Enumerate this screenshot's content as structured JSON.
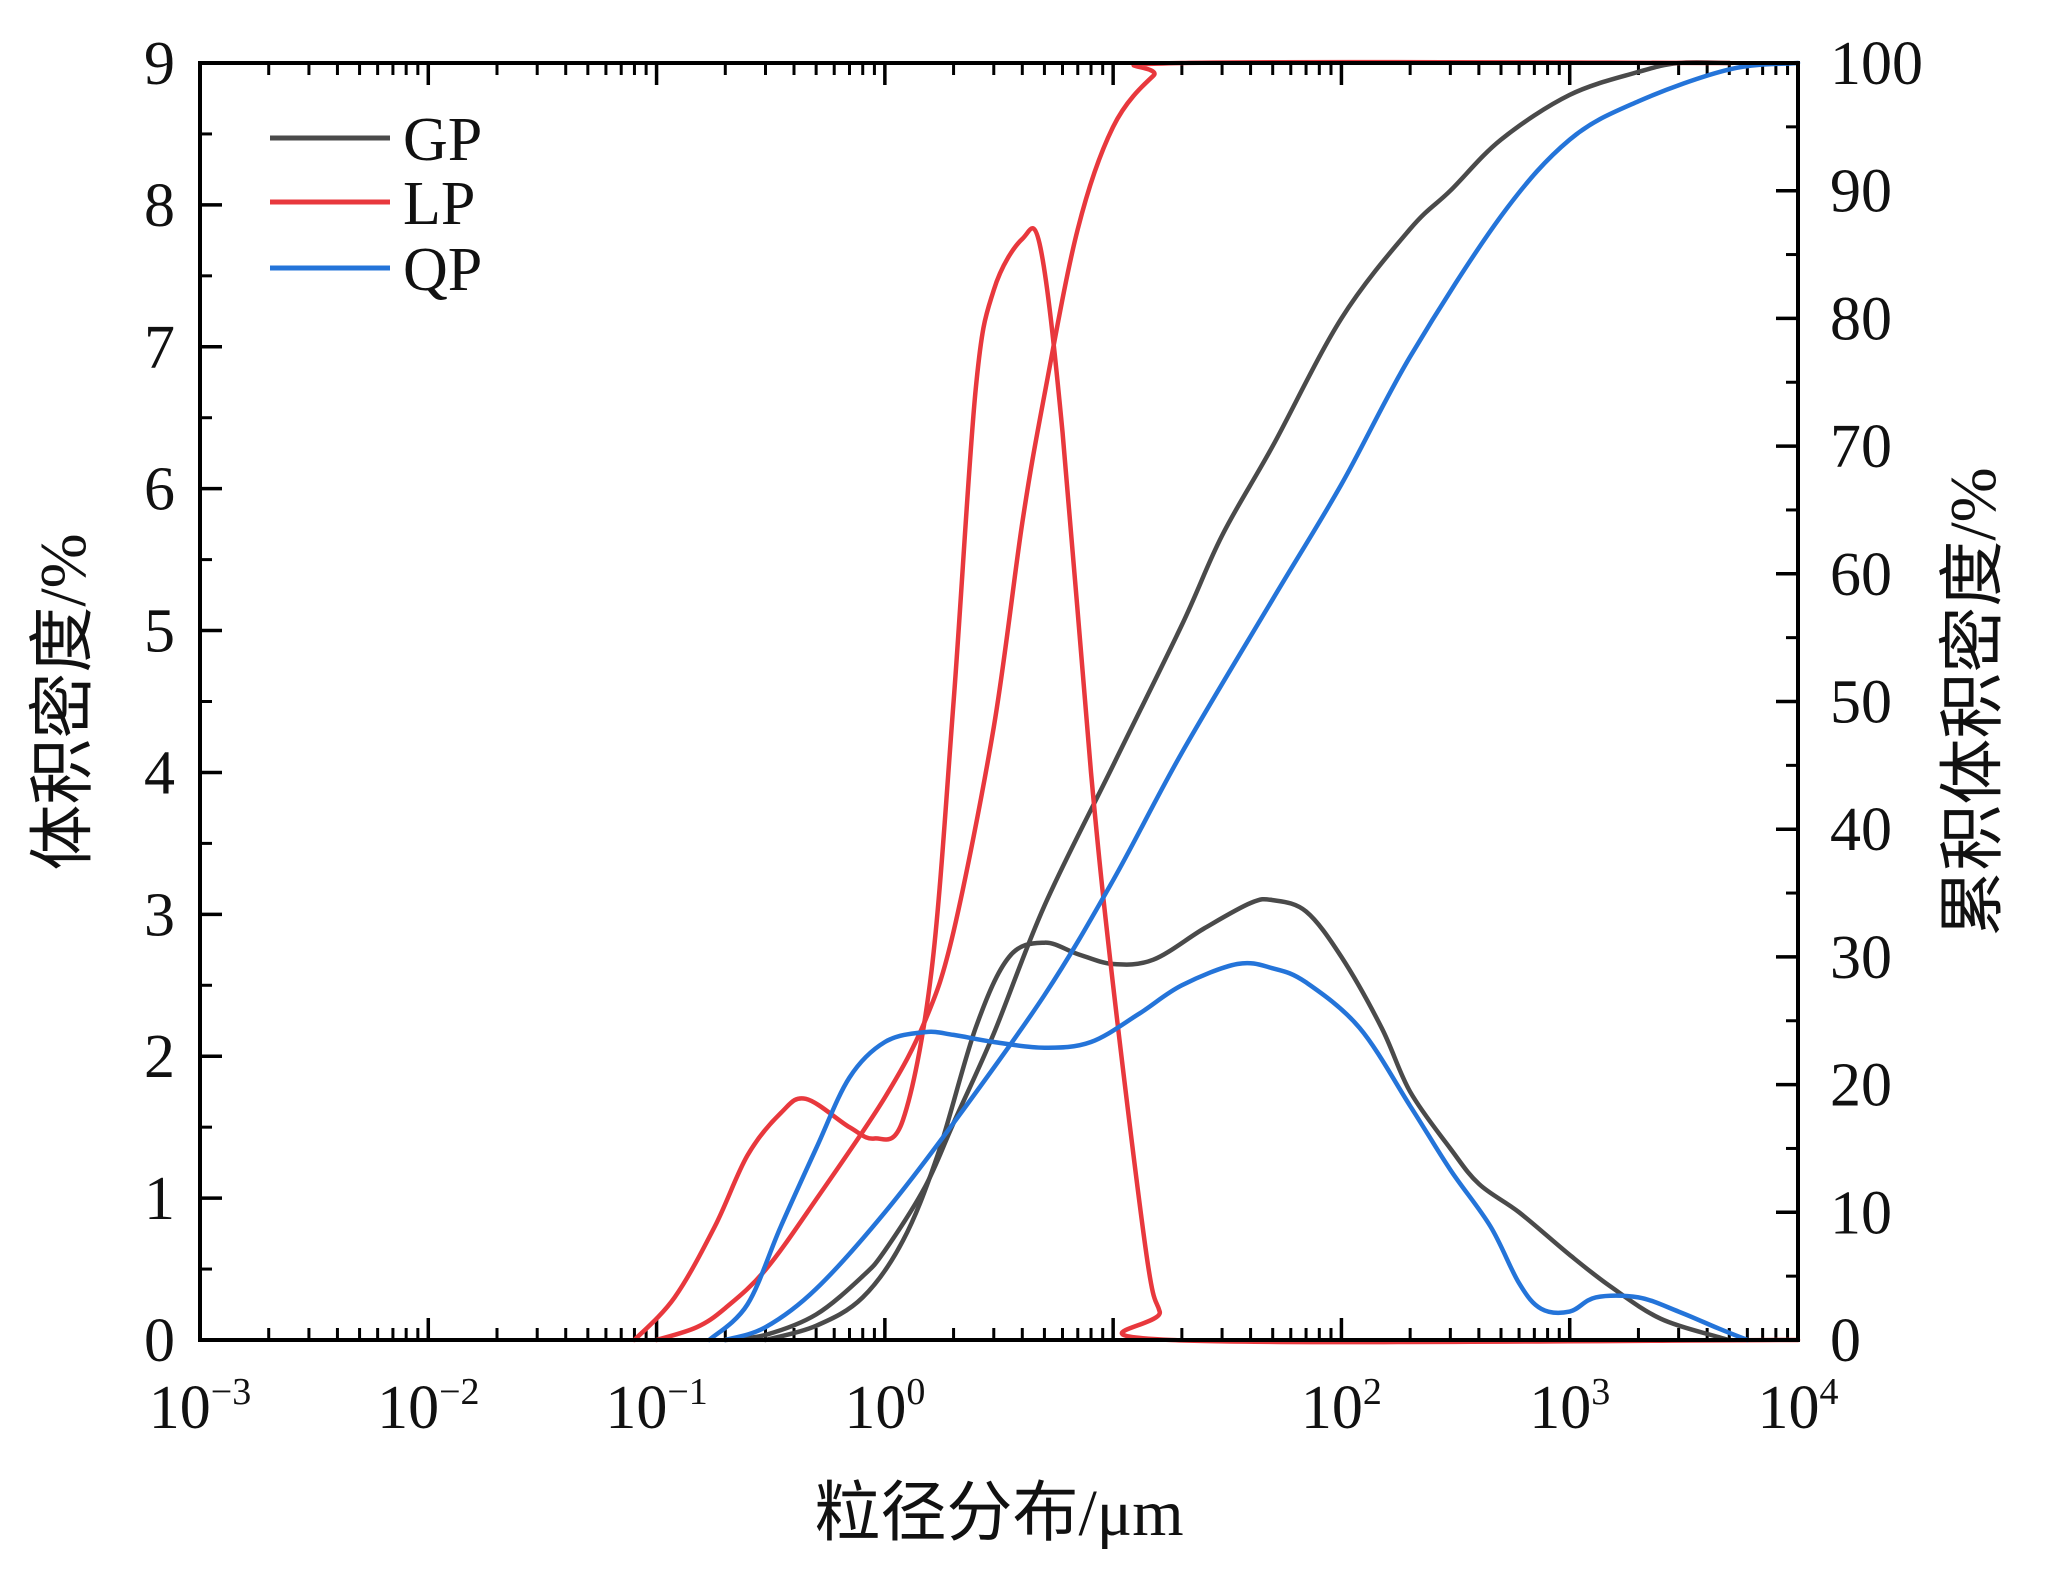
{
  "chart_data": {
    "type": "line",
    "xlabel": "粒径分布/μm",
    "ylabel_left": "体积密度/%",
    "ylabel_right": "累积体积密度/%",
    "x_scale": "log",
    "xlim": [
      0.001,
      10000
    ],
    "x_ticks": [
      {
        "base": "10",
        "exp": "−3",
        "value": 0.001
      },
      {
        "base": "10",
        "exp": "−2",
        "value": 0.01
      },
      {
        "base": "10",
        "exp": "−1",
        "value": 0.1
      },
      {
        "base": "10",
        "exp": "0",
        "value": 1
      },
      {
        "base": "10",
        "exp": "2",
        "value": 100
      },
      {
        "base": "10",
        "exp": "3",
        "value": 1000
      },
      {
        "base": "10",
        "exp": "4",
        "value": 10000
      }
    ],
    "ylim_left": [
      0,
      9
    ],
    "y_ticks_left": [
      "0",
      "1",
      "2",
      "3",
      "4",
      "5",
      "6",
      "7",
      "8",
      "9"
    ],
    "ylim_right": [
      0,
      100
    ],
    "y_ticks_right": [
      "0",
      "10",
      "20",
      "30",
      "40",
      "50",
      "60",
      "70",
      "80",
      "90",
      "100"
    ],
    "grid": false,
    "legend_position": "top-left",
    "series": [
      {
        "name": "GP",
        "color": "#4a4a4a",
        "density": [
          [
            0.3,
            0
          ],
          [
            0.5,
            0.1
          ],
          [
            0.8,
            0.3
          ],
          [
            1.2,
            0.7
          ],
          [
            1.7,
            1.3
          ],
          [
            2.5,
            2.2
          ],
          [
            3.5,
            2.7
          ],
          [
            5,
            2.8
          ],
          [
            7,
            2.72
          ],
          [
            10,
            2.65
          ],
          [
            15,
            2.68
          ],
          [
            25,
            2.9
          ],
          [
            40,
            3.08
          ],
          [
            50,
            3.1
          ],
          [
            70,
            3.02
          ],
          [
            100,
            2.7
          ],
          [
            150,
            2.2
          ],
          [
            200,
            1.75
          ],
          [
            300,
            1.35
          ],
          [
            400,
            1.1
          ],
          [
            600,
            0.9
          ],
          [
            1000,
            0.6
          ],
          [
            1500,
            0.38
          ],
          [
            2500,
            0.15
          ],
          [
            4500,
            0.02
          ],
          [
            5000,
            0
          ]
        ],
        "cumulative": [
          [
            0.2,
            0
          ],
          [
            0.3,
            0.4
          ],
          [
            0.5,
            2
          ],
          [
            0.8,
            5
          ],
          [
            1,
            7
          ],
          [
            1.5,
            12
          ],
          [
            2,
            17
          ],
          [
            3,
            24
          ],
          [
            5,
            34
          ],
          [
            10,
            45
          ],
          [
            20,
            56
          ],
          [
            30,
            63
          ],
          [
            50,
            70
          ],
          [
            100,
            80
          ],
          [
            200,
            87
          ],
          [
            300,
            90
          ],
          [
            500,
            94
          ],
          [
            1000,
            97.5
          ],
          [
            2000,
            99.3
          ],
          [
            3000,
            100
          ],
          [
            5000,
            100
          ]
        ]
      },
      {
        "name": "LP",
        "color": "#e8383d",
        "density": [
          [
            0.08,
            0
          ],
          [
            0.12,
            0.3
          ],
          [
            0.18,
            0.8
          ],
          [
            0.25,
            1.3
          ],
          [
            0.35,
            1.6
          ],
          [
            0.45,
            1.7
          ],
          [
            0.7,
            1.5
          ],
          [
            0.9,
            1.42
          ],
          [
            1.2,
            1.55
          ],
          [
            1.6,
            2.6
          ],
          [
            2,
            4.5
          ],
          [
            2.5,
            6.7
          ],
          [
            3,
            7.4
          ],
          [
            4,
            7.76
          ],
          [
            4.8,
            7.7
          ],
          [
            6,
            6.4
          ],
          [
            8,
            4
          ],
          [
            10,
            2.5
          ],
          [
            14,
            0.6
          ],
          [
            16,
            0.2
          ],
          [
            18,
            0
          ],
          [
            10000,
            0
          ]
        ],
        "cumulative": [
          [
            0.1,
            0
          ],
          [
            0.15,
            1
          ],
          [
            0.2,
            2.5
          ],
          [
            0.3,
            5.5
          ],
          [
            0.5,
            11
          ],
          [
            1,
            19
          ],
          [
            1.5,
            25
          ],
          [
            2,
            32
          ],
          [
            3,
            48
          ],
          [
            4,
            64
          ],
          [
            5,
            74
          ],
          [
            7,
            87
          ],
          [
            10,
            95
          ],
          [
            15,
            99
          ],
          [
            20,
            100
          ],
          [
            5000,
            100
          ]
        ]
      },
      {
        "name": "QP",
        "color": "#2474d9",
        "density": [
          [
            0.17,
            0
          ],
          [
            0.25,
            0.25
          ],
          [
            0.35,
            0.8
          ],
          [
            0.5,
            1.35
          ],
          [
            0.7,
            1.85
          ],
          [
            1,
            2.1
          ],
          [
            1.5,
            2.17
          ],
          [
            2,
            2.15
          ],
          [
            3,
            2.1
          ],
          [
            5,
            2.06
          ],
          [
            8,
            2.1
          ],
          [
            13,
            2.3
          ],
          [
            20,
            2.5
          ],
          [
            35,
            2.65
          ],
          [
            50,
            2.62
          ],
          [
            70,
            2.52
          ],
          [
            120,
            2.2
          ],
          [
            200,
            1.65
          ],
          [
            300,
            1.2
          ],
          [
            450,
            0.8
          ],
          [
            600,
            0.4
          ],
          [
            750,
            0.22
          ],
          [
            1000,
            0.2
          ],
          [
            1300,
            0.3
          ],
          [
            2000,
            0.3
          ],
          [
            3000,
            0.2
          ],
          [
            4500,
            0.08
          ],
          [
            6000,
            0
          ]
        ],
        "cumulative": [
          [
            0.2,
            0
          ],
          [
            0.3,
            1
          ],
          [
            0.5,
            4
          ],
          [
            1,
            10
          ],
          [
            2,
            17
          ],
          [
            5,
            27
          ],
          [
            10,
            36
          ],
          [
            20,
            46
          ],
          [
            50,
            58
          ],
          [
            100,
            67
          ],
          [
            200,
            77
          ],
          [
            500,
            88
          ],
          [
            1000,
            94
          ],
          [
            2000,
            97
          ],
          [
            5000,
            99.5
          ],
          [
            10000,
            100
          ]
        ]
      }
    ]
  }
}
